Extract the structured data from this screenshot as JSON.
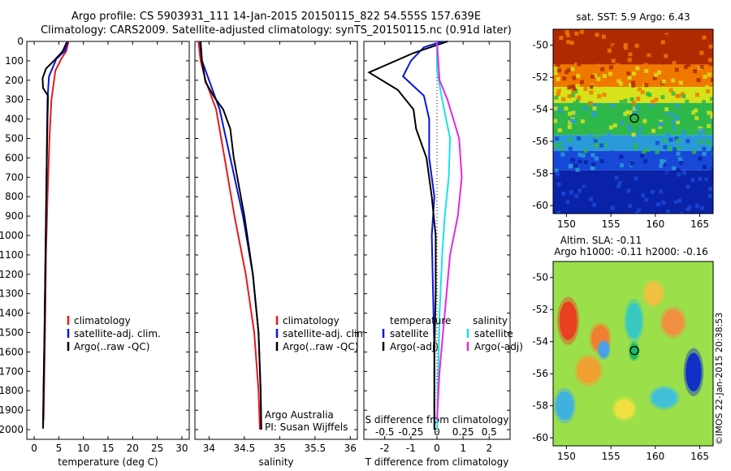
{
  "header": {
    "line1": "Argo profile: CS 5903931_111 14-Jan-2015 20150115_822 54.555S 157.639E",
    "line2": "Climatology: CARS2009. Satellite-adjusted climatology: synTS_20150115.nc (0.91d later)"
  },
  "footer_stamp": "©IMOS 22-Jan-2015 20:38:53",
  "colors": {
    "climatology": "#e41a1c",
    "satellite": "#0a14d8",
    "argo": "#000000",
    "satellite_salinity_diff": "#19e3e6",
    "argo_salinity_diff": "#e628e0"
  },
  "depth_axis": {
    "ylim": [
      0,
      2050
    ],
    "ticks": [
      0,
      100,
      200,
      300,
      400,
      500,
      600,
      700,
      800,
      900,
      1000,
      1100,
      1200,
      1300,
      1400,
      1500,
      1600,
      1700,
      1800,
      1900,
      2000
    ]
  },
  "chart_data": [
    {
      "type": "line",
      "id": "temperature",
      "xlabel": "temperature (deg C)",
      "xlim": [
        -1.5,
        31.5
      ],
      "xticks": [
        0,
        5,
        10,
        15,
        20,
        25,
        30
      ],
      "ylim": [
        2050,
        0
      ],
      "legend": {
        "position": "lower-middle",
        "entries": [
          "climatology",
          "satellite-adj. clim.",
          "Argo(..raw -QC)"
        ]
      },
      "series": [
        {
          "name": "climatology",
          "color_key": "climatology",
          "points": [
            [
              7.0,
              0
            ],
            [
              6.5,
              50
            ],
            [
              5.5,
              90
            ],
            [
              4.3,
              150
            ],
            [
              3.5,
              300
            ],
            [
              3.1,
              500
            ],
            [
              2.7,
              800
            ],
            [
              2.4,
              1100
            ],
            [
              2.2,
              1500
            ],
            [
              2.0,
              1800
            ],
            [
              1.9,
              1950
            ]
          ]
        },
        {
          "name": "satellite-adj. clim.",
          "color_key": "satellite",
          "points": [
            [
              6.8,
              0
            ],
            [
              6.2,
              50
            ],
            [
              4.5,
              90
            ],
            [
              3.0,
              180
            ],
            [
              2.7,
              300
            ],
            [
              2.6,
              500
            ],
            [
              2.5,
              800
            ],
            [
              2.3,
              1100
            ],
            [
              2.1,
              1500
            ],
            [
              1.9,
              1800
            ],
            [
              1.8,
              1995
            ]
          ]
        },
        {
          "name": "Argo(..raw -QC)",
          "color_key": "argo",
          "points": [
            [
              6.6,
              5
            ],
            [
              5.8,
              50
            ],
            [
              4.2,
              95
            ],
            [
              2.4,
              140
            ],
            [
              1.7,
              190
            ],
            [
              1.8,
              240
            ],
            [
              2.8,
              280
            ],
            [
              2.7,
              400
            ],
            [
              2.5,
              700
            ],
            [
              2.3,
              1100
            ],
            [
              2.1,
              1500
            ],
            [
              1.9,
              1800
            ],
            [
              1.8,
              1990
            ]
          ]
        }
      ]
    },
    {
      "type": "line",
      "id": "salinity",
      "xlabel": "salinity",
      "xlim": [
        33.8,
        36.1
      ],
      "xticks": [
        34,
        34.5,
        35,
        35.5,
        36
      ],
      "ylim": [
        2050,
        0
      ],
      "legend": {
        "position": "lower-middle",
        "entries": [
          "climatology",
          "satellite-adj. clim.",
          "Argo(..raw -QC)"
        ]
      },
      "annotation": [
        "Argo Australia",
        "PI: Susan Wijffels"
      ],
      "series": [
        {
          "name": "climatology",
          "color_key": "climatology",
          "points": [
            [
              33.85,
              0
            ],
            [
              33.88,
              100
            ],
            [
              33.95,
              200
            ],
            [
              34.1,
              350
            ],
            [
              34.22,
              600
            ],
            [
              34.36,
              900
            ],
            [
              34.52,
              1200
            ],
            [
              34.64,
              1500
            ],
            [
              34.7,
              1800
            ],
            [
              34.72,
              2000
            ]
          ]
        },
        {
          "name": "satellite-adj. clim.",
          "color_key": "satellite",
          "points": [
            [
              33.87,
              0
            ],
            [
              33.9,
              100
            ],
            [
              34.0,
              200
            ],
            [
              34.15,
              350
            ],
            [
              34.3,
              600
            ],
            [
              34.48,
              900
            ],
            [
              34.62,
              1200
            ],
            [
              34.7,
              1500
            ],
            [
              34.73,
              1800
            ],
            [
              34.74,
              2000
            ]
          ]
        },
        {
          "name": "Argo(..raw -QC)",
          "color_key": "argo",
          "points": [
            [
              33.88,
              0
            ],
            [
              33.9,
              100
            ],
            [
              33.95,
              210
            ],
            [
              34.08,
              290
            ],
            [
              34.2,
              350
            ],
            [
              34.3,
              450
            ],
            [
              34.35,
              600
            ],
            [
              34.5,
              900
            ],
            [
              34.62,
              1200
            ],
            [
              34.7,
              1500
            ],
            [
              34.73,
              1800
            ],
            [
              34.74,
              2000
            ]
          ]
        }
      ]
    },
    {
      "type": "line",
      "id": "differences",
      "xlabel": "T difference from climatology",
      "xlabel_top": "S difference from climatology",
      "xlim": [
        -2.8,
        2.8
      ],
      "xticks": [
        -2,
        -1,
        0,
        1,
        2
      ],
      "xticks_top": [
        [
          "-0.5",
          -2
        ],
        [
          "-0.25",
          -1
        ],
        [
          "0",
          0
        ],
        [
          "0.25",
          1
        ],
        [
          "0.5",
          2
        ]
      ],
      "ylim": [
        2050,
        0
      ],
      "legend": {
        "position": "lower-middle",
        "left_title": "temperature",
        "right_title": "salinity",
        "entries": [
          "satellite",
          "Argo(-adj)",
          "satellite",
          "Argo(-adj)"
        ]
      },
      "series": [
        {
          "name": "temperature satellite",
          "color_key": "satellite",
          "points": [
            [
              0.2,
              0
            ],
            [
              -0.5,
              30
            ],
            [
              -1.0,
              100
            ],
            [
              -1.3,
              180
            ],
            [
              -0.5,
              280
            ],
            [
              -0.3,
              400
            ],
            [
              -0.3,
              600
            ],
            [
              -0.1,
              800
            ],
            [
              -0.2,
              1000
            ],
            [
              -0.15,
              1300
            ],
            [
              -0.1,
              1600
            ],
            [
              -0.1,
              2000
            ]
          ]
        },
        {
          "name": "temperature Argo(-adj)",
          "color_key": "argo",
          "points": [
            [
              0.4,
              0
            ],
            [
              -0.9,
              60
            ],
            [
              -2.6,
              160
            ],
            [
              -1.5,
              250
            ],
            [
              -0.9,
              350
            ],
            [
              -0.8,
              450
            ],
            [
              -0.4,
              600
            ],
            [
              -0.2,
              800
            ],
            [
              -0.05,
              1000
            ],
            [
              -0.05,
              1300
            ],
            [
              -0.1,
              1600
            ],
            [
              -0.1,
              2000
            ]
          ]
        },
        {
          "name": "salinity satellite",
          "color_key": "satellite_salinity_diff",
          "points": [
            [
              0.0,
              0
            ],
            [
              0.0,
              150
            ],
            [
              0.2,
              300
            ],
            [
              0.5,
              500
            ],
            [
              0.45,
              700
            ],
            [
              0.3,
              900
            ],
            [
              0.2,
              1100
            ],
            [
              0.1,
              1400
            ],
            [
              0.05,
              1700
            ],
            [
              0.0,
              2000
            ]
          ]
        },
        {
          "name": "salinity Argo(-adj)",
          "color_key": "argo_salinity_diff",
          "points": [
            [
              0.0,
              0
            ],
            [
              0.1,
              200
            ],
            [
              0.4,
              300
            ],
            [
              0.85,
              500
            ],
            [
              0.95,
              700
            ],
            [
              0.8,
              900
            ],
            [
              0.5,
              1100
            ],
            [
              0.3,
              1400
            ],
            [
              0.1,
              1700
            ],
            [
              0.0,
              1950
            ]
          ]
        }
      ]
    },
    {
      "type": "heatmap",
      "id": "sst-map",
      "title": "sat. SST: 5.9 Argo: 6.43",
      "xlim": [
        148.5,
        166.5
      ],
      "ylim": [
        -60.5,
        -49
      ],
      "xticks": [
        150,
        155,
        160,
        165
      ],
      "yticks": [
        -50,
        -52,
        -54,
        -56,
        -58,
        -60
      ],
      "marker": {
        "lon": 157.639,
        "lat": -54.555
      },
      "bands": [
        {
          "lat_top": -49,
          "lat_bottom": -51.2,
          "color": "#b02a00"
        },
        {
          "lat_top": -51.2,
          "lat_bottom": -52.6,
          "color": "#f07800"
        },
        {
          "lat_top": -52.6,
          "lat_bottom": -53.6,
          "color": "#d6e21a"
        },
        {
          "lat_top": -53.6,
          "lat_bottom": -55.6,
          "color": "#2fb84a"
        },
        {
          "lat_top": -55.6,
          "lat_bottom": -56.6,
          "color": "#2a9ad8"
        },
        {
          "lat_top": -56.6,
          "lat_bottom": -57.8,
          "color": "#1848d8"
        },
        {
          "lat_top": -57.8,
          "lat_bottom": -60.5,
          "color": "#0a22a8"
        }
      ]
    },
    {
      "type": "heatmap",
      "id": "sla-map",
      "title": "Altim. SLA: -0.11",
      "subtitle": "Argo h1000: -0.11 h2000: -0.16",
      "xlim": [
        148.5,
        166.5
      ],
      "ylim": [
        -60.5,
        -49
      ],
      "xticks": [
        150,
        155,
        160,
        165
      ],
      "yticks": [
        -50,
        -52,
        -54,
        -56,
        -58,
        -60
      ],
      "marker": {
        "lon": 157.639,
        "lat": -54.555
      },
      "background": "#9be04a",
      "blobs": [
        {
          "lon": 150.2,
          "lat": -52.7,
          "rx": 1.0,
          "ry": 1.2,
          "color": "#e84020"
        },
        {
          "lon": 153.8,
          "lat": -53.8,
          "rx": 1.0,
          "ry": 0.8,
          "color": "#f08030"
        },
        {
          "lon": 162.0,
          "lat": -52.8,
          "rx": 1.2,
          "ry": 0.8,
          "color": "#f09040"
        },
        {
          "lon": 159.8,
          "lat": -51.0,
          "rx": 1.0,
          "ry": 0.7,
          "color": "#f0c040"
        },
        {
          "lon": 152.5,
          "lat": -55.8,
          "rx": 1.3,
          "ry": 0.8,
          "color": "#f0a030"
        },
        {
          "lon": 154.2,
          "lat": -54.5,
          "rx": 0.6,
          "ry": 0.5,
          "color": "#4aa0e8"
        },
        {
          "lon": 157.6,
          "lat": -52.7,
          "rx": 0.9,
          "ry": 1.1,
          "color": "#38c8c0"
        },
        {
          "lon": 157.6,
          "lat": -54.6,
          "rx": 0.5,
          "ry": 0.5,
          "color": "#1fb864"
        },
        {
          "lon": 164.3,
          "lat": -55.9,
          "rx": 0.9,
          "ry": 1.2,
          "color": "#1030c8"
        },
        {
          "lon": 161.0,
          "lat": -57.5,
          "rx": 1.4,
          "ry": 0.6,
          "color": "#40c0d8"
        },
        {
          "lon": 149.8,
          "lat": -58.0,
          "rx": 1.0,
          "ry": 0.9,
          "color": "#40b0e0"
        },
        {
          "lon": 156.5,
          "lat": -58.2,
          "rx": 1.1,
          "ry": 0.6,
          "color": "#f0e040"
        }
      ]
    }
  ]
}
